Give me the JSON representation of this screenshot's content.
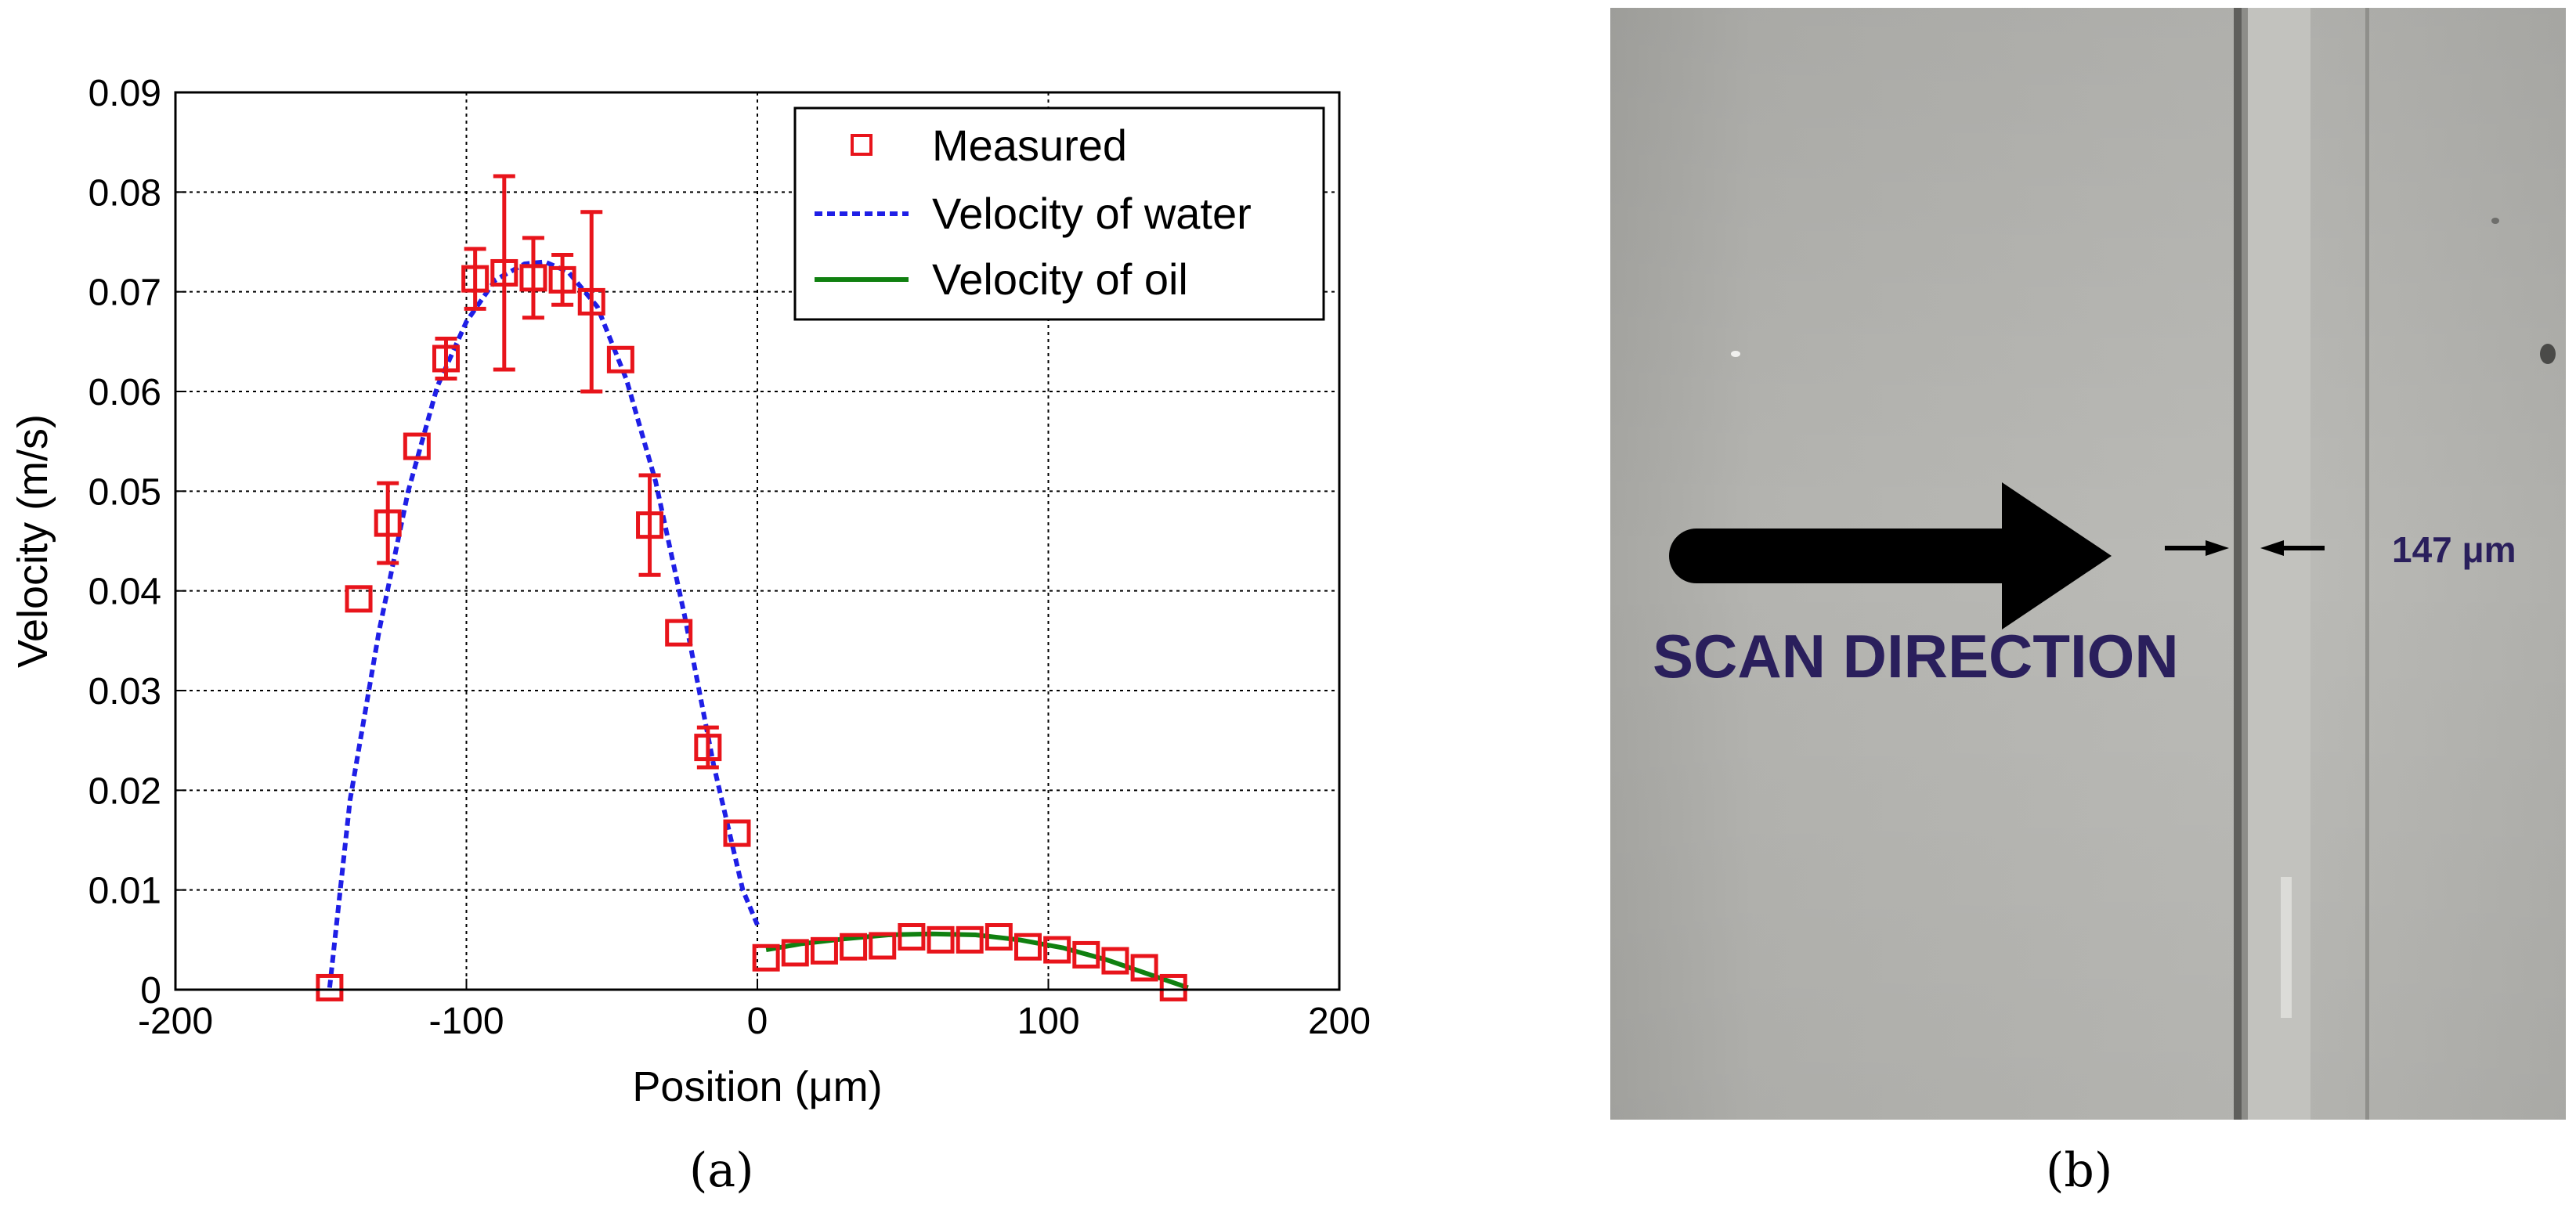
{
  "captions": {
    "a": "(a)",
    "b": "(b)"
  },
  "photo": {
    "scan_label": "SCAN DIRECTION",
    "width_label": "147 μm",
    "text_color": "#2a1f5c"
  },
  "chart_data": {
    "type": "scatter",
    "title": "",
    "xlabel": "Position (μm)",
    "ylabel": "Velocity (m/s)",
    "xlim": [
      -200,
      200
    ],
    "ylim": [
      0,
      0.09
    ],
    "xticks": [
      -200,
      -100,
      0,
      100,
      200
    ],
    "yticks": [
      0,
      0.01,
      0.02,
      0.03,
      0.04,
      0.05,
      0.06,
      0.07,
      0.08,
      0.09
    ],
    "xtick_labels": [
      "-200",
      "-100",
      "0",
      "100",
      "200"
    ],
    "ytick_labels": [
      "0",
      "0.01",
      "0.02",
      "0.03",
      "0.04",
      "0.05",
      "0.06",
      "0.07",
      "0.08",
      "0.09"
    ],
    "grid": true,
    "legend_position": "top-right",
    "series": [
      {
        "name": "Measured",
        "style": "square-markers-with-errorbars",
        "color": "#e8141b",
        "x": [
          -147,
          -137,
          -127,
          -117,
          -107,
          -97,
          -87,
          -77,
          -67,
          -57,
          -47,
          -37,
          -27,
          -17,
          -7,
          3,
          13,
          23,
          33,
          43,
          53,
          63,
          73,
          83,
          93,
          103,
          113,
          123,
          133,
          143
        ],
        "y": [
          0.0002,
          0.0392,
          0.0468,
          0.0545,
          0.0633,
          0.0713,
          0.0719,
          0.0714,
          0.0712,
          0.069,
          0.0632,
          0.0466,
          0.0358,
          0.0243,
          0.0157,
          0.0032,
          0.0037,
          0.0039,
          0.0043,
          0.0044,
          0.0053,
          0.005,
          0.005,
          0.0053,
          0.0043,
          0.004,
          0.0035,
          0.0029,
          0.0022,
          0.0002
        ],
        "err": [
          0,
          0,
          0.004,
          0,
          0.002,
          0.003,
          0.0097,
          0.004,
          0.0025,
          0.009,
          0,
          0.005,
          0,
          0.002,
          0,
          0,
          0,
          0,
          0,
          0,
          0,
          0,
          0,
          0,
          0,
          0,
          0,
          0,
          0,
          0
        ]
      },
      {
        "name": "Velocity of water",
        "style": "dashed-line",
        "color": "#1f1fe6",
        "x": [
          -147,
          -140,
          -130,
          -120,
          -110,
          -100,
          -90,
          -80,
          -73,
          -65,
          -55,
          -45,
          -35,
          -25,
          -15,
          -5,
          0
        ],
        "y": [
          0.0002,
          0.019,
          0.036,
          0.05,
          0.0605,
          0.067,
          0.0712,
          0.0728,
          0.073,
          0.072,
          0.0685,
          0.0612,
          0.051,
          0.0375,
          0.0225,
          0.01,
          0.0065
        ]
      },
      {
        "name": "Velocity of oil",
        "style": "solid-line",
        "color": "#108010",
        "x": [
          3,
          15,
          30,
          45,
          60,
          75,
          90,
          105,
          120,
          135,
          148
        ],
        "y": [
          0.004,
          0.0046,
          0.0051,
          0.0055,
          0.0056,
          0.0055,
          0.005,
          0.0042,
          0.003,
          0.0015,
          0.0002
        ]
      }
    ]
  }
}
